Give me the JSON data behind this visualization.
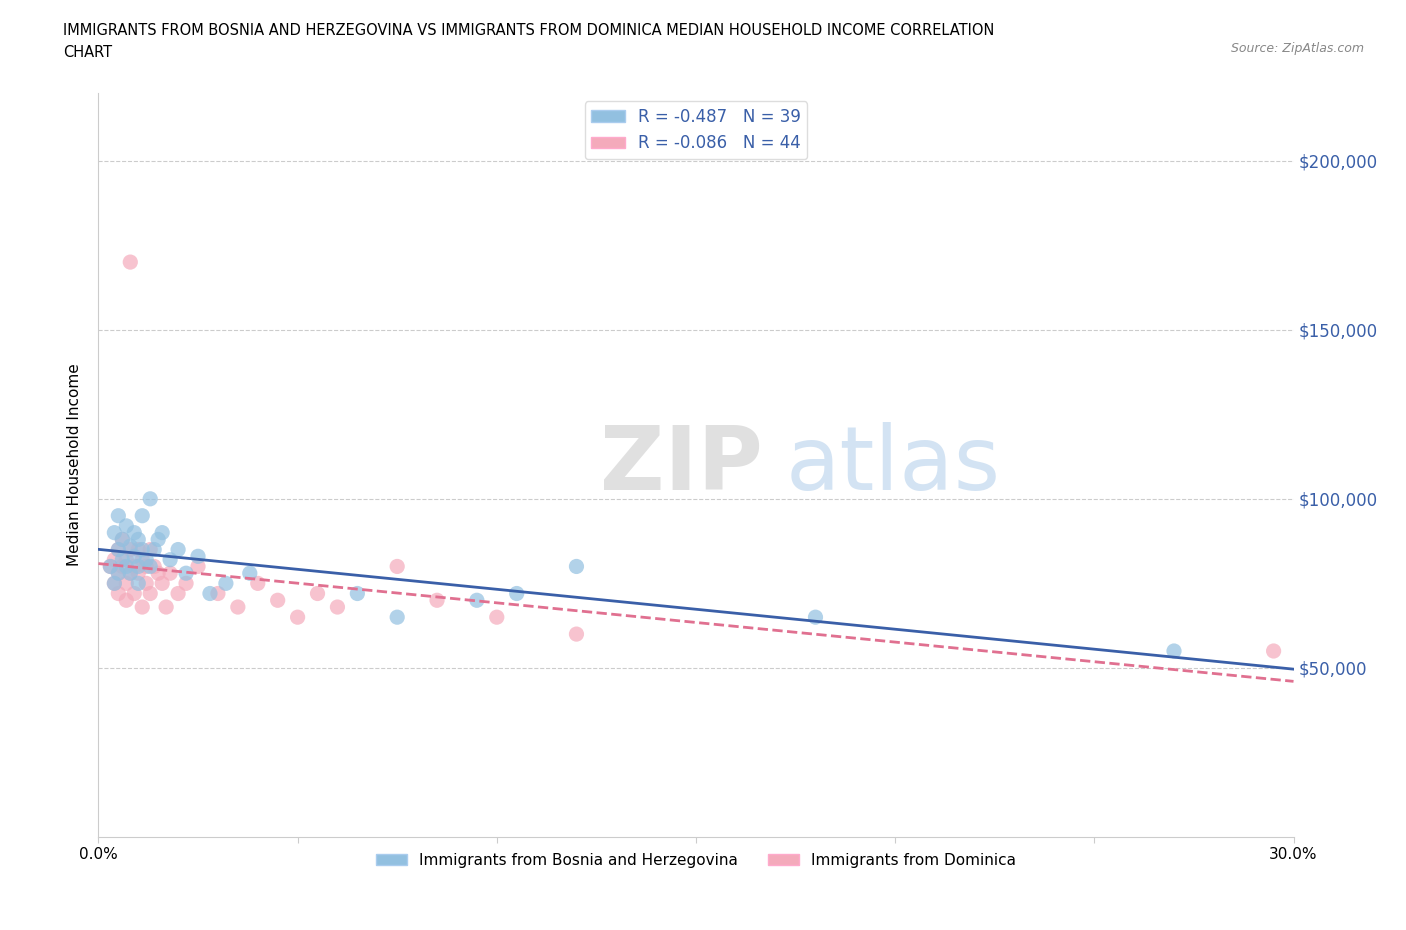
{
  "title_line1": "IMMIGRANTS FROM BOSNIA AND HERZEGOVINA VS IMMIGRANTS FROM DOMINICA MEDIAN HOUSEHOLD INCOME CORRELATION",
  "title_line2": "CHART",
  "source": "Source: ZipAtlas.com",
  "ylabel": "Median Household Income",
  "xlim": [
    0.0,
    0.3
  ],
  "ylim": [
    0,
    220000
  ],
  "yticks": [
    0,
    50000,
    100000,
    150000,
    200000
  ],
  "xticks": [
    0.0,
    0.05,
    0.1,
    0.15,
    0.2,
    0.25,
    0.3
  ],
  "xtick_labels": [
    "0.0%",
    "",
    "",
    "",
    "",
    "",
    "30.0%"
  ],
  "color_blue": "#92C0E0",
  "color_pink": "#F4AABB",
  "line_blue": "#3A5FA8",
  "line_pink": "#E07090",
  "watermark_zip": "ZIP",
  "watermark_atlas": "atlas",
  "background_color": "#FFFFFF",
  "bosnia_x": [
    0.003,
    0.004,
    0.004,
    0.005,
    0.005,
    0.005,
    0.006,
    0.006,
    0.007,
    0.007,
    0.008,
    0.008,
    0.009,
    0.009,
    0.01,
    0.01,
    0.01,
    0.011,
    0.011,
    0.012,
    0.013,
    0.013,
    0.014,
    0.015,
    0.016,
    0.018,
    0.02,
    0.022,
    0.025,
    0.028,
    0.032,
    0.038,
    0.065,
    0.075,
    0.095,
    0.105,
    0.12,
    0.18,
    0.27
  ],
  "bosnia_y": [
    80000,
    90000,
    75000,
    95000,
    85000,
    78000,
    88000,
    82000,
    92000,
    80000,
    86000,
    78000,
    90000,
    83000,
    88000,
    80000,
    75000,
    85000,
    95000,
    82000,
    80000,
    100000,
    85000,
    88000,
    90000,
    82000,
    85000,
    78000,
    83000,
    72000,
    75000,
    78000,
    72000,
    65000,
    70000,
    72000,
    80000,
    65000,
    55000
  ],
  "dominica_x": [
    0.003,
    0.004,
    0.004,
    0.005,
    0.005,
    0.005,
    0.006,
    0.006,
    0.007,
    0.007,
    0.007,
    0.008,
    0.008,
    0.009,
    0.009,
    0.01,
    0.01,
    0.011,
    0.011,
    0.012,
    0.012,
    0.013,
    0.013,
    0.014,
    0.015,
    0.016,
    0.017,
    0.018,
    0.02,
    0.022,
    0.025,
    0.03,
    0.035,
    0.04,
    0.045,
    0.05,
    0.055,
    0.06,
    0.075,
    0.085,
    0.1,
    0.12,
    0.295,
    0.008
  ],
  "dominica_y": [
    80000,
    82000,
    75000,
    85000,
    78000,
    72000,
    80000,
    88000,
    82000,
    75000,
    70000,
    85000,
    78000,
    80000,
    72000,
    85000,
    78000,
    82000,
    68000,
    80000,
    75000,
    85000,
    72000,
    80000,
    78000,
    75000,
    68000,
    78000,
    72000,
    75000,
    80000,
    72000,
    68000,
    75000,
    70000,
    65000,
    72000,
    68000,
    80000,
    70000,
    65000,
    60000,
    55000,
    170000
  ]
}
